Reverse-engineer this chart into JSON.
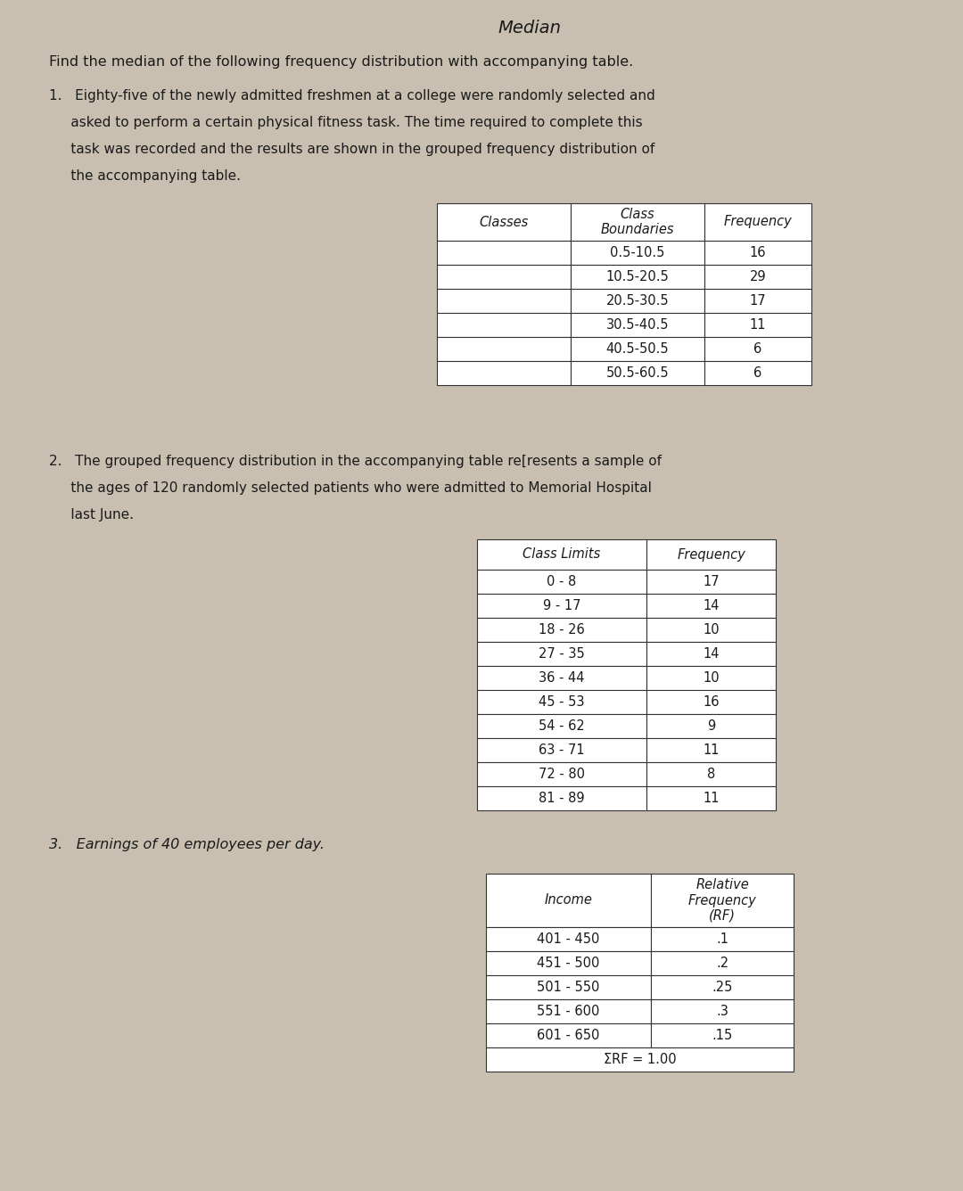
{
  "title": "Median",
  "main_instruction": "Find the median of the following frequency distribution with accompanying table.",
  "p1_line1": "1.   Eighty-five of the newly admitted freshmen at a college were randomly selected and",
  "p1_line2": "     asked to perform a certain physical fitness task. The time required to complete this",
  "p1_line3": "     task was recorded and the results are shown in the grouped frequency distribution of",
  "p1_line4": "     the accompanying table.",
  "table1_headers": [
    "Classes",
    "Class\nBoundaries",
    "Frequency"
  ],
  "table1_rows": [
    [
      "",
      "0.5-10.5",
      "16"
    ],
    [
      "",
      "10.5-20.5",
      "29"
    ],
    [
      "",
      "20.5-30.5",
      "17"
    ],
    [
      "",
      "30.5-40.5",
      "11"
    ],
    [
      "",
      "40.5-50.5",
      "6"
    ],
    [
      "",
      "50.5-60.5",
      "6"
    ]
  ],
  "p2_line1": "2.   The grouped frequency distribution in the accompanying table re[resents a sample of",
  "p2_line2": "     the ages of 120 randomly selected patients who were admitted to Memorial Hospital",
  "p2_line3": "     last June.",
  "table2_headers": [
    "Class Limits",
    "Frequency"
  ],
  "table2_rows": [
    [
      "0 - 8",
      "17"
    ],
    [
      "9 - 17",
      "14"
    ],
    [
      "18 - 26",
      "10"
    ],
    [
      "27 - 35",
      "14"
    ],
    [
      "36 - 44",
      "10"
    ],
    [
      "45 - 53",
      "16"
    ],
    [
      "54 - 62",
      "9"
    ],
    [
      "63 - 71",
      "11"
    ],
    [
      "72 - 80",
      "8"
    ],
    [
      "81 - 89",
      "11"
    ]
  ],
  "p3_text": "3.   Earnings of 40 employees per day.",
  "table3_col1_header": "Income",
  "table3_col2_header": "Relative\nFrequency\n(RF)",
  "table3_rows": [
    [
      "401 - 450",
      ".1"
    ],
    [
      "451 - 500",
      ".2"
    ],
    [
      "501 - 550",
      ".25"
    ],
    [
      "551 - 600",
      ".3"
    ],
    [
      "601 - 650",
      ".15"
    ]
  ],
  "table3_footer": "ΣRF = 1.00",
  "bg_color": "#c8bfb0",
  "text_color": "#1a1a1a",
  "table_line_color": "#333333"
}
